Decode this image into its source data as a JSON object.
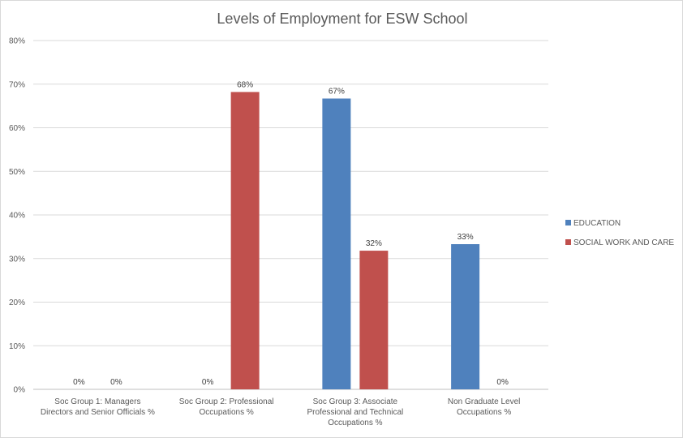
{
  "chart_data": {
    "type": "bar",
    "title": "Levels of Employment for ESW School",
    "xlabel": "",
    "ylabel": "",
    "ylim": [
      0,
      80
    ],
    "y_tick_step": 10,
    "y_tick_labels": [
      "0%",
      "10%",
      "20%",
      "30%",
      "40%",
      "50%",
      "60%",
      "70%",
      "80%"
    ],
    "grid": true,
    "legend_position": "right",
    "categories": [
      [
        "Soc Group 1: Managers",
        "Directors and Senior Officials %"
      ],
      [
        "Soc Group 2: Professional",
        "Occupations %"
      ],
      [
        "Soc Group 3: Associate",
        "Professional and Technical",
        "Occupations %"
      ],
      [
        "Non Graduate Level",
        "Occupations %"
      ]
    ],
    "series": [
      {
        "name": "EDUCATION",
        "color": "#4f81bd",
        "values": [
          0,
          0,
          66.7,
          33.3
        ],
        "labels": [
          "0%",
          "0%",
          "67%",
          "33%"
        ]
      },
      {
        "name": "SOCIAL WORK AND CARE",
        "color": "#c0504d",
        "values": [
          0,
          68.2,
          31.8,
          0
        ],
        "labels": [
          "0%",
          "68%",
          "32%",
          "0%"
        ]
      }
    ]
  }
}
